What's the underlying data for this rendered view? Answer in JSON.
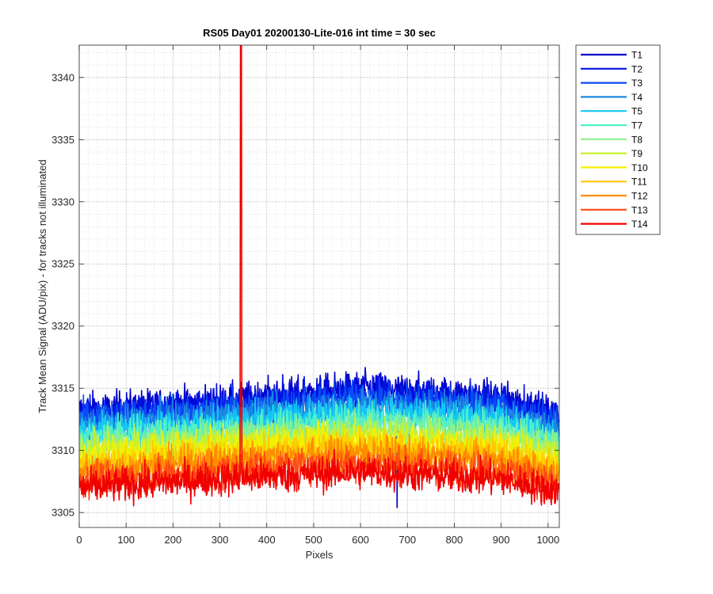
{
  "chart_data": {
    "type": "line",
    "title": "RS05 Day01 20200130-Lite-016 int time = 30 sec",
    "xlabel": "Pixels",
    "ylabel": "Track Mean Signal (ADU/pix) - for tracks not illuminated",
    "xlim": [
      0,
      1024
    ],
    "ylim": [
      3303.8,
      3342.6
    ],
    "xticks": [
      0,
      100,
      200,
      300,
      400,
      500,
      600,
      700,
      800,
      900,
      1000
    ],
    "yticks": [
      3305,
      3310,
      3315,
      3320,
      3325,
      3330,
      3335,
      3340
    ],
    "grid": "major and minor, dotted",
    "legend_position": "outside right, top",
    "series": [
      {
        "name": "T1",
        "color": "#0000c8",
        "profile": {
          "0": 3313.2,
          "300": 3313.9,
          "600": 3315.0,
          "900": 3314.2,
          "1024": 3312.8
        }
      },
      {
        "name": "T2",
        "color": "#0014e6",
        "profile": {
          "0": 3312.9,
          "300": 3313.6,
          "600": 3314.7,
          "900": 3313.9,
          "1024": 3312.5
        }
      },
      {
        "name": "T3",
        "color": "#0a4cf5",
        "profile": {
          "0": 3312.5,
          "300": 3313.2,
          "600": 3314.2,
          "900": 3313.5,
          "1024": 3312.1
        }
      },
      {
        "name": "T4",
        "color": "#1e88e0",
        "profile": {
          "0": 3312.0,
          "300": 3312.7,
          "600": 3313.6,
          "900": 3313.0,
          "1024": 3311.6
        }
      },
      {
        "name": "T5",
        "color": "#14c8f5",
        "profile": {
          "0": 3311.6,
          "300": 3312.2,
          "600": 3313.0,
          "900": 3312.5,
          "1024": 3311.1
        }
      },
      {
        "name": "T7",
        "color": "#50f0c8",
        "profile": {
          "0": 3311.0,
          "300": 3311.6,
          "600": 3312.4,
          "900": 3311.9,
          "1024": 3310.6
        }
      },
      {
        "name": "T8",
        "color": "#8cf08c",
        "profile": {
          "0": 3310.5,
          "300": 3311.1,
          "600": 3311.8,
          "900": 3311.3,
          "1024": 3310.0
        }
      },
      {
        "name": "T9",
        "color": "#c8f032",
        "profile": {
          "0": 3309.9,
          "300": 3310.6,
          "600": 3311.3,
          "900": 3310.7,
          "1024": 3309.5
        }
      },
      {
        "name": "T10",
        "color": "#f5f000",
        "profile": {
          "0": 3309.4,
          "300": 3310.1,
          "600": 3310.8,
          "900": 3310.2,
          "1024": 3309.0
        }
      },
      {
        "name": "T11",
        "color": "#ffc800",
        "profile": {
          "0": 3308.8,
          "300": 3309.6,
          "600": 3310.2,
          "900": 3309.6,
          "1024": 3308.4
        }
      },
      {
        "name": "T12",
        "color": "#ff8c00",
        "profile": {
          "0": 3308.3,
          "300": 3309.1,
          "600": 3309.8,
          "900": 3309.1,
          "1024": 3307.9
        }
      },
      {
        "name": "T13",
        "color": "#ff4b14",
        "profile": {
          "0": 3307.6,
          "300": 3308.4,
          "600": 3309.0,
          "900": 3308.4,
          "1024": 3307.3
        }
      },
      {
        "name": "T14",
        "color": "#f00000",
        "profile": {
          "0": 3307.0,
          "300": 3307.7,
          "600": 3308.3,
          "900": 3307.7,
          "1024": 3306.7
        }
      }
    ],
    "noise_amplitude_adu": 1.8,
    "spike": {
      "series": "T14",
      "x": 345,
      "y_max": 3342.6
    },
    "dips": [
      {
        "series": "T1",
        "x": 678,
        "y": 3305.4
      }
    ]
  }
}
